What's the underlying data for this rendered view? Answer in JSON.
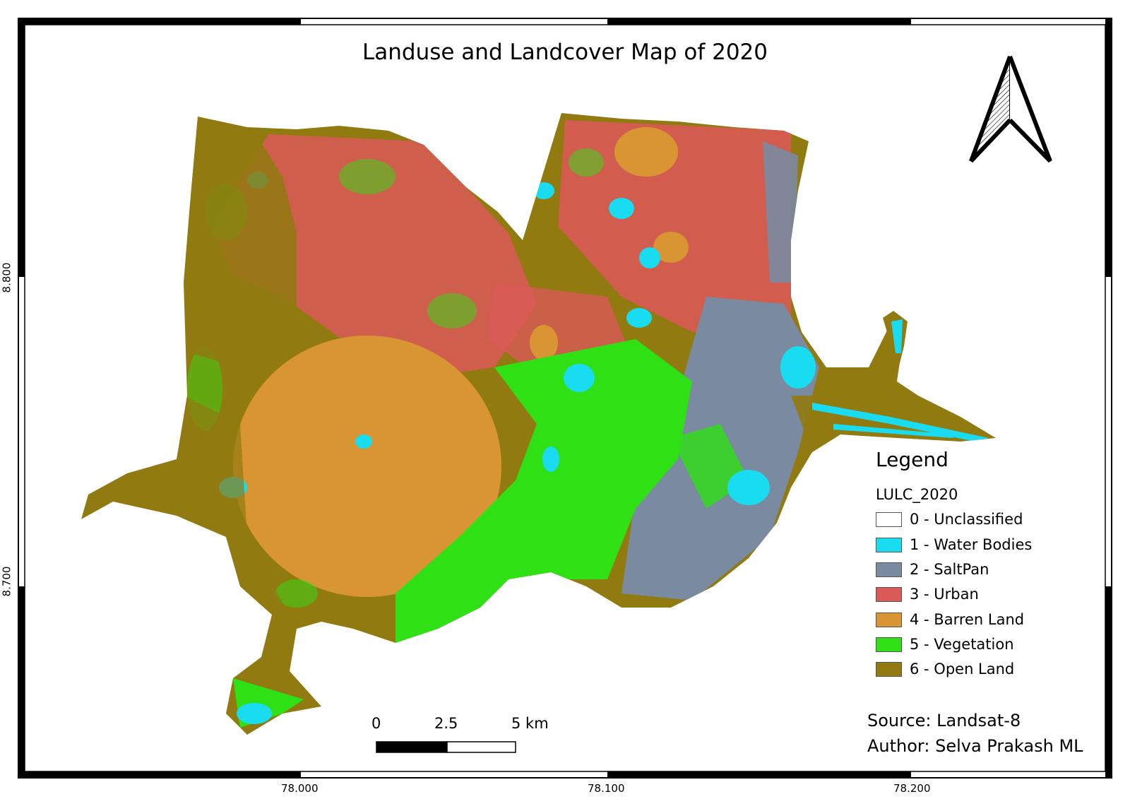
{
  "title": "Landuse and Landcover Map of 2020",
  "legend": {
    "title": "Legend",
    "layer_name": "LULC_2020",
    "items": [
      {
        "label": "0 - Unclassified",
        "color": "#ffffff"
      },
      {
        "label": "1 - Water Bodies",
        "color": "#19dcf0"
      },
      {
        "label": "2 - SaltPan",
        "color": "#7a8aa0"
      },
      {
        "label": "3 - Urban",
        "color": "#d95a57"
      },
      {
        "label": "4 - Barren Land",
        "color": "#d99533"
      },
      {
        "label": "5 - Vegetation",
        "color": "#2ee014"
      },
      {
        "label": "6 - Open Land",
        "color": "#917a10"
      }
    ]
  },
  "scale_bar": {
    "labels": [
      "0",
      "2.5",
      "5 km"
    ]
  },
  "source": "Source: Landsat-8",
  "author": "Author: Selva Prakash ML",
  "x_ticks": [
    "78.000",
    "78.100",
    "78.200"
  ],
  "y_ticks": [
    "8.800",
    "8.700"
  ],
  "colors": {
    "water": "#19dcf0",
    "saltpan": "#7a8aa0",
    "urban": "#d95a57",
    "barren": "#d99533",
    "vegetation": "#2ee014",
    "open_land": "#917a10"
  },
  "icons": [
    "north-arrow-icon"
  ]
}
